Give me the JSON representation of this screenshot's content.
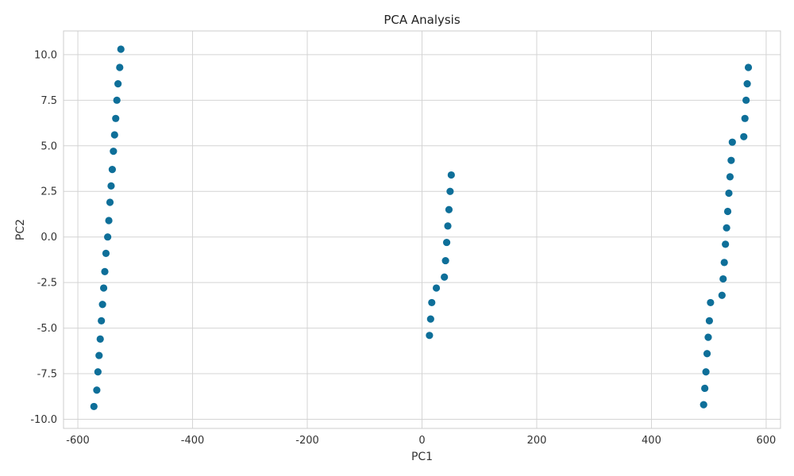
{
  "chart_data": {
    "type": "scatter",
    "title": "PCA Analysis",
    "xlabel": "PC1",
    "ylabel": "PC2",
    "xlim": [
      -625,
      625
    ],
    "ylim": [
      -10.5,
      11.3
    ],
    "x_ticks": [
      -600,
      -400,
      -200,
      0,
      200,
      400,
      600
    ],
    "x_tick_labels": [
      "-600",
      "-400",
      "-200",
      "0",
      "200",
      "400",
      "600"
    ],
    "y_ticks": [
      -10,
      -7.5,
      -5,
      -2.5,
      0,
      2.5,
      5,
      7.5,
      10
    ],
    "y_tick_labels": [
      "-10.0",
      "-7.5",
      "-5.0",
      "-2.5",
      "0.0",
      "2.5",
      "5.0",
      "7.5",
      "10.0"
    ],
    "grid": true,
    "colors": {
      "point": "#0e6f99",
      "grid": "#d4d4d4",
      "frame": "#cccccc"
    },
    "series": [
      {
        "points": [
          [
            -572,
            -9.3
          ],
          [
            -567,
            -8.4
          ],
          [
            -565,
            -7.4
          ],
          [
            -563,
            -6.5
          ],
          [
            -561,
            -5.6
          ],
          [
            -559,
            -4.6
          ],
          [
            -557,
            -3.7
          ],
          [
            -555,
            -2.8
          ],
          [
            -553,
            -1.9
          ],
          [
            -551,
            -0.9
          ],
          [
            -548,
            0.0
          ],
          [
            -546,
            0.9
          ],
          [
            -544,
            1.9
          ],
          [
            -542,
            2.8
          ],
          [
            -540,
            3.7
          ],
          [
            -538,
            4.7
          ],
          [
            -536,
            5.6
          ],
          [
            -534,
            6.5
          ],
          [
            -532,
            7.5
          ],
          [
            -530,
            8.4
          ],
          [
            -527,
            9.3
          ],
          [
            -525,
            10.3
          ],
          [
            13,
            -5.4
          ],
          [
            15,
            -4.5
          ],
          [
            17,
            -3.6
          ],
          [
            25,
            -2.8
          ],
          [
            39,
            -2.2
          ],
          [
            41,
            -1.3
          ],
          [
            43,
            -0.3
          ],
          [
            45,
            0.6
          ],
          [
            47,
            1.5
          ],
          [
            49,
            2.5
          ],
          [
            51,
            3.4
          ],
          [
            491,
            -9.2
          ],
          [
            493,
            -8.3
          ],
          [
            495,
            -7.4
          ],
          [
            497,
            -6.4
          ],
          [
            499,
            -5.5
          ],
          [
            501,
            -4.6
          ],
          [
            503,
            -3.6
          ],
          [
            523,
            -3.2
          ],
          [
            525,
            -2.3
          ],
          [
            527,
            -1.4
          ],
          [
            529,
            -0.4
          ],
          [
            531,
            0.5
          ],
          [
            533,
            1.4
          ],
          [
            535,
            2.4
          ],
          [
            537,
            3.3
          ],
          [
            539,
            4.2
          ],
          [
            541,
            5.2
          ],
          [
            561,
            5.5
          ],
          [
            563,
            6.5
          ],
          [
            565,
            7.5
          ],
          [
            567,
            8.4
          ],
          [
            569,
            9.3
          ]
        ]
      }
    ]
  }
}
